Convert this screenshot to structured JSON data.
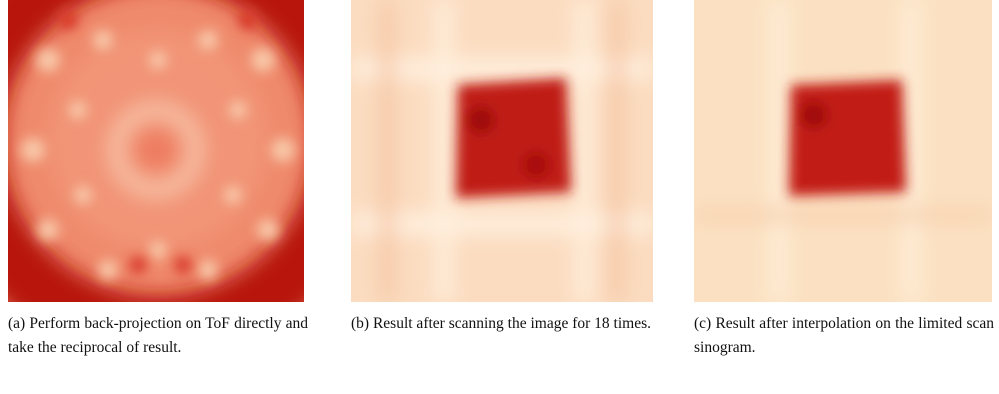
{
  "figure": {
    "subfigures": [
      {
        "caption": "(a) Perform back-projection on ToF directly and take the reciprocal of result."
      },
      {
        "caption": "(b) Result after scanning the image for 18 times."
      },
      {
        "caption": "(c) Result after interpolation on the limited scan sinogram."
      }
    ]
  }
}
